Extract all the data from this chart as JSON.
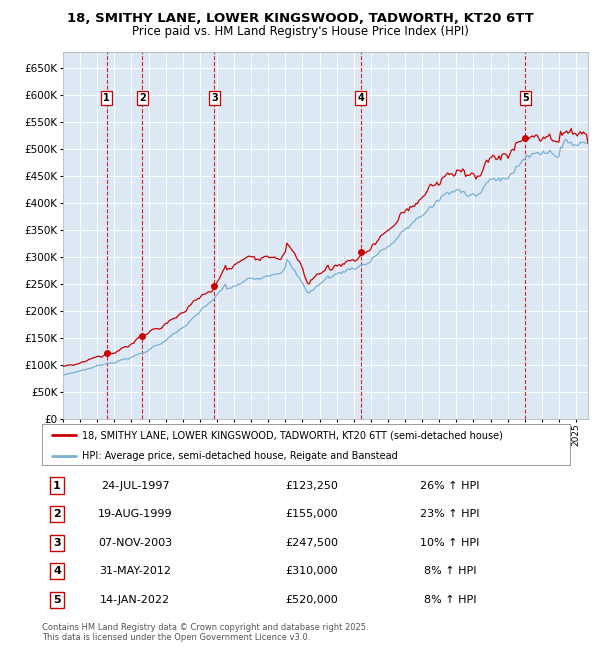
{
  "title": "18, SMITHY LANE, LOWER KINGSWOOD, TADWORTH, KT20 6TT",
  "subtitle": "Price paid vs. HM Land Registry's House Price Index (HPI)",
  "red_label": "18, SMITHY LANE, LOWER KINGSWOOD, TADWORTH, KT20 6TT (semi-detached house)",
  "blue_label": "HPI: Average price, semi-detached house, Reigate and Banstead",
  "footer": "Contains HM Land Registry data © Crown copyright and database right 2025.\nThis data is licensed under the Open Government Licence v3.0.",
  "sales": [
    {
      "num": 1,
      "date": "24-JUL-1997",
      "date_dec": 1997.56,
      "price": 123250,
      "pct": "26% ↑ HPI"
    },
    {
      "num": 2,
      "date": "19-AUG-1999",
      "date_dec": 1999.63,
      "price": 155000,
      "pct": "23% ↑ HPI"
    },
    {
      "num": 3,
      "date": "07-NOV-2003",
      "date_dec": 2003.85,
      "price": 247500,
      "pct": "10% ↑ HPI"
    },
    {
      "num": 4,
      "date": "31-MAY-2012",
      "date_dec": 2012.41,
      "price": 310000,
      "pct": "8% ↑ HPI"
    },
    {
      "num": 5,
      "date": "14-JAN-2022",
      "date_dec": 2022.04,
      "price": 520000,
      "pct": "8% ↑ HPI"
    }
  ],
  "ylim": [
    0,
    680000
  ],
  "yticks": [
    0,
    50000,
    100000,
    150000,
    200000,
    250000,
    300000,
    350000,
    400000,
    450000,
    500000,
    550000,
    600000,
    650000
  ],
  "xlim_start": 1995.0,
  "xlim_end": 2025.7,
  "background_color": "#dce9f5",
  "grid_color": "#ffffff",
  "red_color": "#cc0000",
  "blue_color": "#7ab0d4",
  "title_fontsize": 9.5,
  "subtitle_fontsize": 8.5
}
